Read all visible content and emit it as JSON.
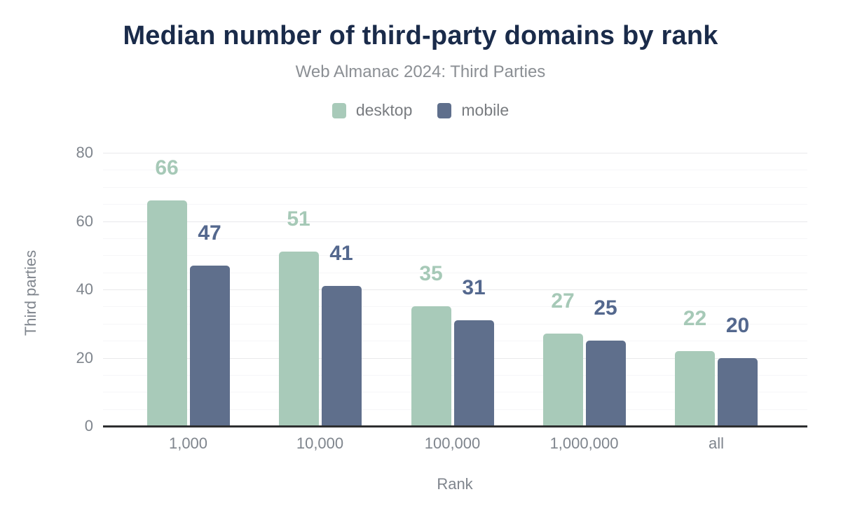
{
  "header": {
    "title": "Median number of third-party domains by rank",
    "subtitle": "Web Almanac 2024: Third Parties"
  },
  "legend": [
    {
      "label": "desktop",
      "color": "#a8cab9"
    },
    {
      "label": "mobile",
      "color": "#5f6f8c"
    }
  ],
  "chart_data": {
    "type": "bar",
    "title": "Median number of third-party domains by rank",
    "subtitle": "Web Almanac 2024: Third Parties",
    "categories": [
      "1,000",
      "10,000",
      "100,000",
      "1,000,000",
      "all"
    ],
    "series": [
      {
        "name": "desktop",
        "color": "#a8cab9",
        "label_color": "#a6c9b7",
        "values": [
          66,
          51,
          35,
          27,
          22
        ]
      },
      {
        "name": "mobile",
        "color": "#5f6f8c",
        "label_color": "#54688e",
        "values": [
          47,
          41,
          31,
          25,
          20
        ]
      }
    ],
    "xlabel": "Rank",
    "ylabel": "Third parties",
    "ylim": [
      0,
      80
    ],
    "yticks": [
      0,
      20,
      40,
      60,
      80
    ],
    "grid": {
      "major_every": 20,
      "minor_every": 5,
      "grid_on": true
    },
    "legend_position": "top",
    "bar_value_labels": true
  },
  "colors": {
    "title": "#1a2b4a",
    "subtitle": "#8b8f94",
    "axis_text": "#7f858d",
    "axis_line": "#2e2f30",
    "gridline_major": "#e9e9eb",
    "gridline_minor": "#f6f6f8",
    "background": "#ffffff"
  }
}
